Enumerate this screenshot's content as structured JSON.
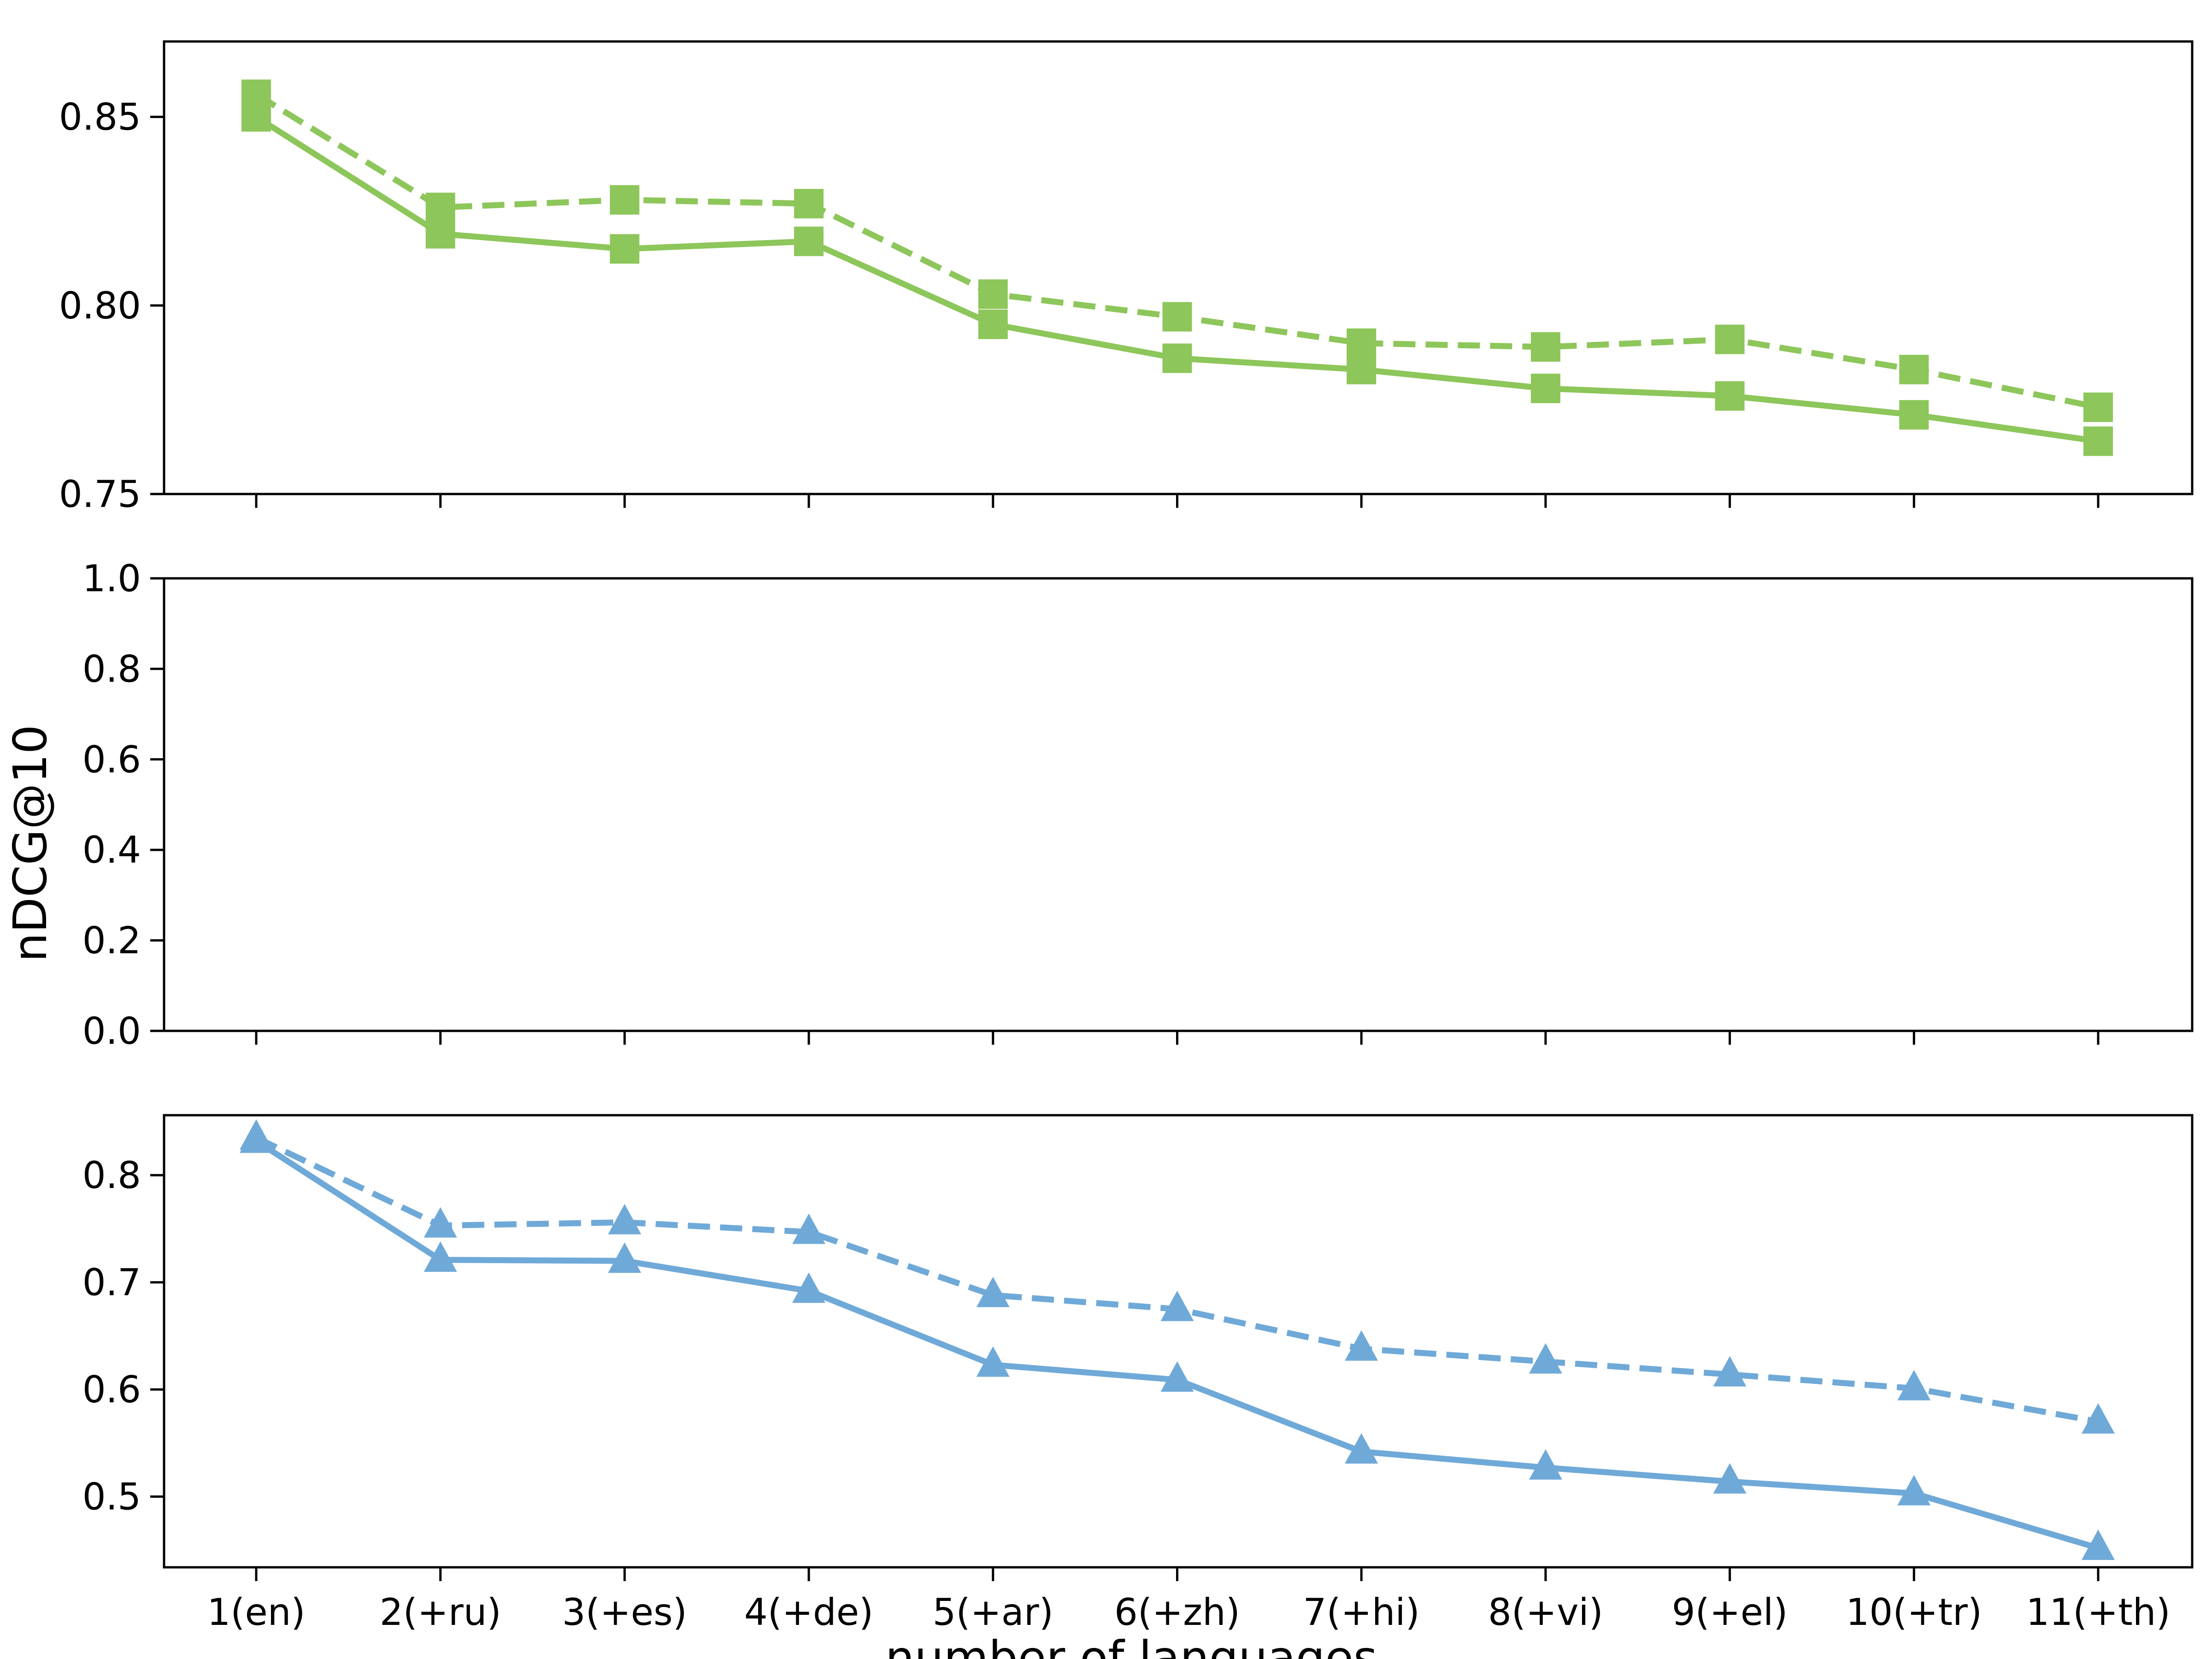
{
  "chart_data": {
    "type": "line",
    "ylabel": "nDCG@10",
    "xlabel": "number of languages",
    "categories": [
      "1(en)",
      "2(+ru)",
      "3(+es)",
      "4(+de)",
      "5(+ar)",
      "6(+zh)",
      "7(+hi)",
      "8(+vi)",
      "9(+el)",
      "10(+tr)",
      "11(+th)"
    ],
    "panels": [
      {
        "ylim": [
          0.75,
          0.87
        ],
        "yticks": [
          "0.75",
          "0.80",
          "0.85"
        ],
        "color": "#8dc65a",
        "marker": "square",
        "series": [
          {
            "linestyle": "solid",
            "values": [
              0.85,
              0.819,
              0.815,
              0.817,
              0.795,
              0.786,
              0.783,
              0.778,
              0.776,
              0.771,
              0.764
            ]
          },
          {
            "linestyle": "dashed",
            "values": [
              0.856,
              0.826,
              0.828,
              0.827,
              0.803,
              0.797,
              0.79,
              0.789,
              0.791,
              0.783,
              0.773
            ]
          }
        ]
      },
      {
        "ylim": [
          0.0,
          1.0
        ],
        "yticks": [
          "0.0",
          "0.2",
          "0.4",
          "0.6",
          "0.8",
          "1.0"
        ],
        "series": []
      },
      {
        "ylim": [
          0.434,
          0.856
        ],
        "yticks": [
          "0.5",
          "0.6",
          "0.7",
          "0.8"
        ],
        "color": "#6fa9d8",
        "marker": "triangle",
        "series": [
          {
            "linestyle": "solid",
            "values": [
              0.832,
              0.721,
              0.72,
              0.692,
              0.623,
              0.609,
              0.542,
              0.527,
              0.514,
              0.503,
              0.452
            ]
          },
          {
            "linestyle": "dashed",
            "values": [
              0.835,
              0.753,
              0.756,
              0.747,
              0.688,
              0.675,
              0.638,
              0.626,
              0.614,
              0.601,
              0.57
            ]
          }
        ]
      }
    ]
  }
}
